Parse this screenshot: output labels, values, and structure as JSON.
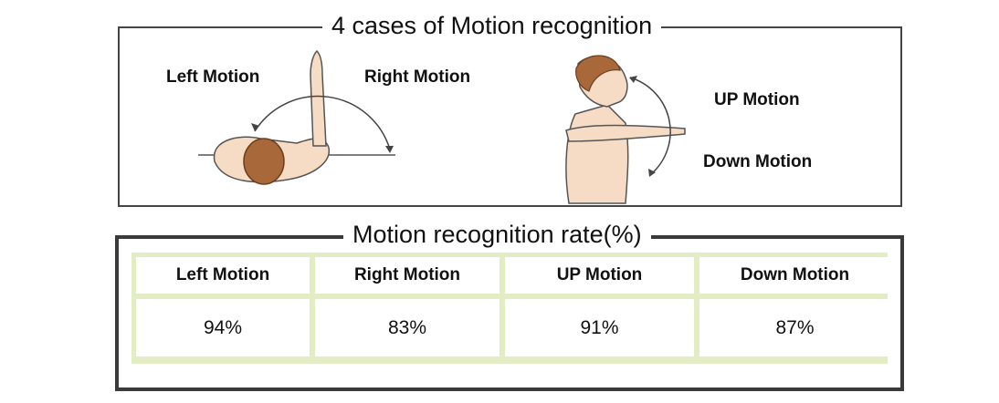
{
  "top_panel": {
    "title": "4 cases of Motion recognition",
    "labels": {
      "left": "Left Motion",
      "right": "Right Motion",
      "up": "UP Motion",
      "down": "Down Motion"
    }
  },
  "bottom_panel": {
    "title": "Motion recognition rate(%)",
    "table": {
      "headers": [
        "Left Motion",
        "Right Motion",
        "UP Motion",
        "Down Motion"
      ],
      "values": [
        "94%",
        "83%",
        "91%",
        "87%"
      ]
    }
  },
  "colors": {
    "skin": "#f6dcc4",
    "hair": "#a8683a",
    "outline": "#555555",
    "table_border": "#e2edc4"
  }
}
